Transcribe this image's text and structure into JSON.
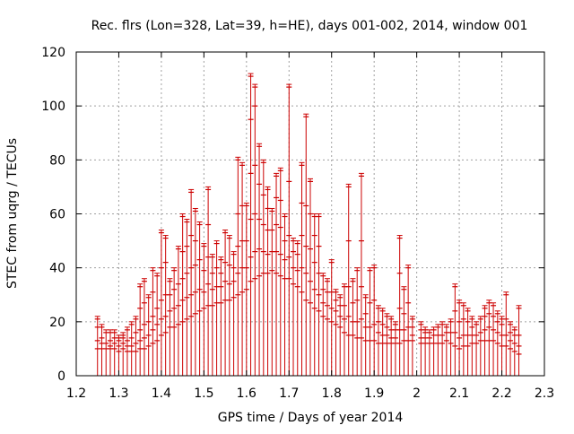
{
  "chart_data": {
    "type": "scatter",
    "style": "vertical-range-bars-with-markers",
    "title": "Rec. flrs (Lon=328, Lat=39, h=HE), days 001-002, 2014, window 001",
    "xlabel": "GPS time / Days of year 2014",
    "ylabel": "STEC from uqrg / TECUs",
    "xlim": [
      1.2,
      2.3
    ],
    "ylim": [
      0,
      120
    ],
    "x_ticks": [
      "1.2",
      "1.3",
      "1.4",
      "1.5",
      "1.6",
      "1.7",
      "1.8",
      "1.9",
      "2",
      "2.1",
      "2.2",
      "2.3"
    ],
    "y_ticks": [
      "0",
      "20",
      "40",
      "60",
      "80",
      "100",
      "120"
    ],
    "grid": true,
    "series_color": "#cc0000",
    "ranges": [
      {
        "x": 1.25,
        "low": 0,
        "high": 22,
        "marks": [
          10,
          13,
          18,
          21
        ]
      },
      {
        "x": 1.26,
        "low": 0,
        "high": 19,
        "marks": [
          10,
          12,
          14,
          18
        ]
      },
      {
        "x": 1.27,
        "low": 0,
        "high": 17,
        "marks": [
          10,
          12,
          16
        ]
      },
      {
        "x": 1.28,
        "low": 0,
        "high": 17,
        "marks": [
          10,
          11,
          13,
          16
        ]
      },
      {
        "x": 1.29,
        "low": 0,
        "high": 17,
        "marks": [
          10,
          12,
          14,
          16
        ]
      },
      {
        "x": 1.3,
        "low": 0,
        "high": 15,
        "marks": [
          9,
          11,
          13,
          14
        ]
      },
      {
        "x": 1.31,
        "low": 0,
        "high": 16,
        "marks": [
          10,
          12,
          14,
          15
        ]
      },
      {
        "x": 1.32,
        "low": 0,
        "high": 18,
        "marks": [
          9,
          11,
          13,
          17
        ]
      },
      {
        "x": 1.33,
        "low": 0,
        "high": 20,
        "marks": [
          9,
          11,
          14,
          19
        ]
      },
      {
        "x": 1.34,
        "low": 0,
        "high": 22,
        "marks": [
          9,
          12,
          16,
          21
        ]
      },
      {
        "x": 1.35,
        "low": 0,
        "high": 34,
        "marks": [
          10,
          13,
          17,
          25,
          33
        ]
      },
      {
        "x": 1.36,
        "low": 0,
        "high": 36,
        "marks": [
          10,
          14,
          19,
          27,
          35
        ]
      },
      {
        "x": 1.37,
        "low": 0,
        "high": 30,
        "marks": [
          11,
          15,
          20,
          29
        ]
      },
      {
        "x": 1.38,
        "low": 0,
        "high": 40,
        "marks": [
          12,
          17,
          22,
          31,
          39
        ]
      },
      {
        "x": 1.39,
        "low": 0,
        "high": 38,
        "marks": [
          13,
          19,
          25,
          37
        ]
      },
      {
        "x": 1.4,
        "low": 0,
        "high": 54,
        "marks": [
          15,
          21,
          28,
          40,
          53
        ]
      },
      {
        "x": 1.41,
        "low": 0,
        "high": 52,
        "marks": [
          16,
          22,
          30,
          42,
          51
        ]
      },
      {
        "x": 1.42,
        "low": 0,
        "high": 36,
        "marks": [
          18,
          24,
          30,
          35
        ]
      },
      {
        "x": 1.43,
        "low": 0,
        "high": 40,
        "marks": [
          18,
          25,
          32,
          39
        ]
      },
      {
        "x": 1.44,
        "low": 0,
        "high": 48,
        "marks": [
          19,
          26,
          34,
          47
        ]
      },
      {
        "x": 1.45,
        "low": 0,
        "high": 60,
        "marks": [
          20,
          28,
          36,
          46,
          59
        ]
      },
      {
        "x": 1.46,
        "low": 0,
        "high": 58,
        "marks": [
          21,
          29,
          38,
          48,
          57
        ]
      },
      {
        "x": 1.47,
        "low": 0,
        "high": 69,
        "marks": [
          22,
          30,
          40,
          52,
          68
        ]
      },
      {
        "x": 1.48,
        "low": 0,
        "high": 62,
        "marks": [
          23,
          31,
          41,
          50,
          61
        ]
      },
      {
        "x": 1.49,
        "low": 0,
        "high": 57,
        "marks": [
          24,
          32,
          43,
          56
        ]
      },
      {
        "x": 1.5,
        "low": 0,
        "high": 49,
        "marks": [
          25,
          31,
          39,
          48
        ]
      },
      {
        "x": 1.51,
        "low": 0,
        "high": 70,
        "marks": [
          26,
          34,
          44,
          56,
          69
        ]
      },
      {
        "x": 1.52,
        "low": 0,
        "high": 45,
        "marks": [
          26,
          32,
          38,
          44
        ]
      },
      {
        "x": 1.53,
        "low": 0,
        "high": 50,
        "marks": [
          27,
          33,
          40,
          49
        ]
      },
      {
        "x": 1.54,
        "low": 0,
        "high": 44,
        "marks": [
          27,
          33,
          38,
          43
        ]
      },
      {
        "x": 1.55,
        "low": 0,
        "high": 54,
        "marks": [
          28,
          35,
          42,
          53
        ]
      },
      {
        "x": 1.56,
        "low": 0,
        "high": 52,
        "marks": [
          28,
          34,
          41,
          51
        ]
      },
      {
        "x": 1.57,
        "low": 0,
        "high": 46,
        "marks": [
          29,
          35,
          40,
          45
        ]
      },
      {
        "x": 1.58,
        "low": 0,
        "high": 81,
        "marks": [
          30,
          38,
          48,
          60,
          80
        ]
      },
      {
        "x": 1.59,
        "low": 0,
        "high": 79,
        "marks": [
          31,
          40,
          50,
          63,
          78
        ]
      },
      {
        "x": 1.6,
        "low": 0,
        "high": 64,
        "marks": [
          32,
          40,
          50,
          63
        ]
      },
      {
        "x": 1.61,
        "low": 0,
        "high": 112,
        "marks": [
          35,
          44,
          58,
          75,
          95,
          111
        ]
      },
      {
        "x": 1.62,
        "low": 0,
        "high": 108,
        "marks": [
          36,
          46,
          60,
          78,
          100,
          107
        ]
      },
      {
        "x": 1.63,
        "low": 0,
        "high": 86,
        "marks": [
          37,
          47,
          58,
          71,
          85
        ]
      },
      {
        "x": 1.64,
        "low": 0,
        "high": 80,
        "marks": [
          38,
          46,
          56,
          67,
          79
        ]
      },
      {
        "x": 1.65,
        "low": 0,
        "high": 70,
        "marks": [
          38,
          45,
          54,
          62,
          69
        ]
      },
      {
        "x": 1.66,
        "low": 0,
        "high": 62,
        "marks": [
          39,
          46,
          54,
          61
        ]
      },
      {
        "x": 1.67,
        "low": 0,
        "high": 75,
        "marks": [
          38,
          46,
          56,
          66,
          74
        ]
      },
      {
        "x": 1.68,
        "low": 0,
        "high": 77,
        "marks": [
          37,
          45,
          55,
          65,
          76
        ]
      },
      {
        "x": 1.69,
        "low": 0,
        "high": 60,
        "marks": [
          36,
          43,
          50,
          59
        ]
      },
      {
        "x": 1.7,
        "low": 0,
        "high": 108,
        "marks": [
          36,
          44,
          52,
          72,
          107
        ]
      },
      {
        "x": 1.71,
        "low": 0,
        "high": 51,
        "marks": [
          34,
          40,
          46,
          50
        ]
      },
      {
        "x": 1.72,
        "low": 0,
        "high": 50,
        "marks": [
          33,
          39,
          45,
          49
        ]
      },
      {
        "x": 1.73,
        "low": 0,
        "high": 79,
        "marks": [
          31,
          40,
          52,
          64,
          78
        ]
      },
      {
        "x": 1.74,
        "low": 0,
        "high": 97,
        "marks": [
          28,
          38,
          48,
          63,
          96
        ]
      },
      {
        "x": 1.75,
        "low": 0,
        "high": 73,
        "marks": [
          27,
          35,
          47,
          60,
          72
        ]
      },
      {
        "x": 1.76,
        "low": 0,
        "high": 60,
        "marks": [
          25,
          32,
          42,
          52,
          59
        ]
      },
      {
        "x": 1.77,
        "low": 0,
        "high": 60,
        "marks": [
          24,
          30,
          38,
          48,
          59
        ]
      },
      {
        "x": 1.78,
        "low": 0,
        "high": 38,
        "marks": [
          22,
          27,
          32,
          37
        ]
      },
      {
        "x": 1.79,
        "low": 0,
        "high": 36,
        "marks": [
          21,
          26,
          31,
          35
        ]
      },
      {
        "x": 1.8,
        "low": 0,
        "high": 43,
        "marks": [
          20,
          25,
          31,
          42
        ]
      },
      {
        "x": 1.81,
        "low": 0,
        "high": 32,
        "marks": [
          19,
          24,
          28,
          31
        ]
      },
      {
        "x": 1.82,
        "low": 0,
        "high": 30,
        "marks": [
          18,
          22,
          26,
          29
        ]
      },
      {
        "x": 1.83,
        "low": 0,
        "high": 34,
        "marks": [
          16,
          21,
          26,
          33
        ]
      },
      {
        "x": 1.84,
        "low": 0,
        "high": 71,
        "marks": [
          15,
          22,
          33,
          50,
          70
        ]
      },
      {
        "x": 1.85,
        "low": 0,
        "high": 36,
        "marks": [
          15,
          20,
          27,
          35
        ]
      },
      {
        "x": 1.86,
        "low": 0,
        "high": 40,
        "marks": [
          14,
          20,
          28,
          39
        ]
      },
      {
        "x": 1.87,
        "low": 0,
        "high": 75,
        "marks": [
          14,
          21,
          33,
          50,
          74
        ]
      },
      {
        "x": 1.88,
        "low": 0,
        "high": 30,
        "marks": [
          13,
          18,
          23,
          29
        ]
      },
      {
        "x": 1.89,
        "low": 0,
        "high": 40,
        "marks": [
          13,
          18,
          27,
          39
        ]
      },
      {
        "x": 1.9,
        "low": 0,
        "high": 41,
        "marks": [
          13,
          19,
          28,
          40
        ]
      },
      {
        "x": 1.91,
        "low": 0,
        "high": 26,
        "marks": [
          12,
          16,
          20,
          25
        ]
      },
      {
        "x": 1.92,
        "low": 0,
        "high": 25,
        "marks": [
          12,
          15,
          19,
          24
        ]
      },
      {
        "x": 1.93,
        "low": 0,
        "high": 23,
        "marks": [
          12,
          15,
          18,
          22
        ]
      },
      {
        "x": 1.94,
        "low": 0,
        "high": 22,
        "marks": [
          12,
          14,
          17,
          21
        ]
      },
      {
        "x": 1.95,
        "low": 0,
        "high": 20,
        "marks": [
          12,
          14,
          17,
          19
        ]
      },
      {
        "x": 1.96,
        "low": 0,
        "high": 52,
        "marks": [
          12,
          17,
          25,
          38,
          51
        ]
      },
      {
        "x": 1.97,
        "low": 0,
        "high": 33,
        "marks": [
          13,
          17,
          23,
          32
        ]
      },
      {
        "x": 1.98,
        "low": 0,
        "high": 41,
        "marks": [
          13,
          18,
          27,
          40
        ]
      },
      {
        "x": 1.99,
        "low": 0,
        "high": 22,
        "marks": [
          13,
          15,
          18,
          21
        ]
      },
      {
        "x": 2.01,
        "low": 0,
        "high": 20,
        "marks": [
          12,
          14,
          17,
          19
        ]
      },
      {
        "x": 2.02,
        "low": 0,
        "high": 18,
        "marks": [
          12,
          14,
          16,
          17
        ]
      },
      {
        "x": 2.03,
        "low": 0,
        "high": 17,
        "marks": [
          12,
          14,
          16
        ]
      },
      {
        "x": 2.04,
        "low": 0,
        "high": 18,
        "marks": [
          12,
          15,
          17
        ]
      },
      {
        "x": 2.05,
        "low": 0,
        "high": 19,
        "marks": [
          12,
          15,
          18
        ]
      },
      {
        "x": 2.06,
        "low": 0,
        "high": 20,
        "marks": [
          12,
          15,
          19
        ]
      },
      {
        "x": 2.07,
        "low": 0,
        "high": 19,
        "marks": [
          13,
          16,
          18
        ]
      },
      {
        "x": 2.08,
        "low": 0,
        "high": 21,
        "marks": [
          12,
          16,
          20
        ]
      },
      {
        "x": 2.09,
        "low": 0,
        "high": 34,
        "marks": [
          11,
          16,
          24,
          33
        ]
      },
      {
        "x": 2.1,
        "low": 0,
        "high": 28,
        "marks": [
          10,
          14,
          20,
          27
        ]
      },
      {
        "x": 2.11,
        "low": 0,
        "high": 27,
        "marks": [
          11,
          15,
          21,
          26
        ]
      },
      {
        "x": 2.12,
        "low": 0,
        "high": 25,
        "marks": [
          11,
          15,
          20,
          24
        ]
      },
      {
        "x": 2.13,
        "low": 0,
        "high": 22,
        "marks": [
          12,
          15,
          18,
          21
        ]
      },
      {
        "x": 2.14,
        "low": 0,
        "high": 20,
        "marks": [
          12,
          15,
          19
        ]
      },
      {
        "x": 2.15,
        "low": 0,
        "high": 22,
        "marks": [
          13,
          16,
          21
        ]
      },
      {
        "x": 2.16,
        "low": 0,
        "high": 26,
        "marks": [
          13,
          17,
          22,
          25
        ]
      },
      {
        "x": 2.17,
        "low": 0,
        "high": 28,
        "marks": [
          13,
          18,
          23,
          27
        ]
      },
      {
        "x": 2.18,
        "low": 0,
        "high": 27,
        "marks": [
          13,
          17,
          22,
          26
        ]
      },
      {
        "x": 2.19,
        "low": 0,
        "high": 24,
        "marks": [
          12,
          16,
          20,
          23
        ]
      },
      {
        "x": 2.2,
        "low": 0,
        "high": 22,
        "marks": [
          11,
          15,
          19,
          21
        ]
      },
      {
        "x": 2.21,
        "low": 0,
        "high": 31,
        "marks": [
          11,
          15,
          21,
          30
        ]
      },
      {
        "x": 2.22,
        "low": 0,
        "high": 20,
        "marks": [
          10,
          13,
          16,
          19
        ]
      },
      {
        "x": 2.23,
        "low": 0,
        "high": 18,
        "marks": [
          9,
          12,
          15,
          17
        ]
      },
      {
        "x": 2.24,
        "low": 0,
        "high": 26,
        "marks": [
          8,
          11,
          15,
          25
        ]
      }
    ]
  }
}
